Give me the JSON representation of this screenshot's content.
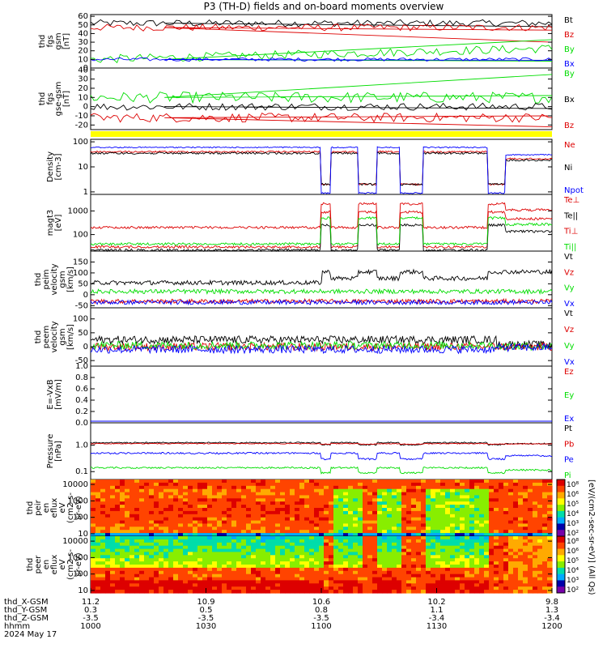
{
  "title": "P3 (TH-D) fields and on-board moments overview",
  "colors": {
    "black": "#000000",
    "red": "#dd0000",
    "green": "#00dd00",
    "blue": "#0000ff",
    "yellow": "#ffff00"
  },
  "chart_data": [
    {
      "type": "line",
      "id": "p1",
      "ylabel_lines": [
        "thd",
        "fgs",
        "gsm",
        "[nT]"
      ],
      "ticks": [
        "0",
        "10",
        "20",
        "30",
        "40",
        "50",
        "60"
      ],
      "ylim": [
        0,
        62
      ],
      "series": [
        {
          "name": "Bt",
          "color": "black",
          "seg": [
            [
              0,
              0.16,
              52,
              4
            ],
            [
              0.16,
              1,
              48,
              0
            ]
          ]
        },
        {
          "name": "Bz",
          "color": "red",
          "seg": [
            [
              0,
              0.16,
              47,
              4
            ],
            [
              0.16,
              1,
              30,
              0
            ],
            [
              0.16,
              1,
              44,
              0
            ]
          ]
        },
        {
          "name": "By",
          "color": "green",
          "seg": [
            [
              0,
              0.16,
              10,
              5
            ],
            [
              0.16,
              1,
              33,
              0
            ],
            [
              0.16,
              1,
              8,
              0
            ]
          ]
        },
        {
          "name": "Bx",
          "color": "blue",
          "seg": [
            [
              0,
              0.16,
              10,
              2
            ],
            [
              0.16,
              1,
              9,
              0
            ]
          ]
        }
      ]
    },
    {
      "type": "line",
      "id": "p2",
      "ylabel_lines": [
        "thd",
        "fgs",
        "gse-gsm",
        "[nT]"
      ],
      "ticks": [
        "-20",
        "-10",
        "0",
        "10",
        "20",
        "30",
        "40"
      ],
      "ylim": [
        -25,
        42
      ],
      "series": [
        {
          "name": "By",
          "color": "green",
          "seg": [
            [
              0,
              0.16,
              10,
              6
            ],
            [
              0.16,
              1,
              35,
              0
            ],
            [
              0.16,
              1,
              12,
              0
            ]
          ]
        },
        {
          "name": "Bx",
          "color": "black",
          "seg": [
            [
              0,
              0.16,
              0,
              4
            ],
            [
              0.16,
              1,
              -2,
              0
            ]
          ]
        },
        {
          "name": "Bz",
          "color": "red",
          "seg": [
            [
              0,
              0.16,
              -12,
              5
            ],
            [
              0.16,
              1,
              -22,
              0
            ],
            [
              0.16,
              1,
              -10,
              0
            ]
          ]
        }
      ]
    },
    {
      "type": "log-line",
      "id": "p3",
      "ylabel_lines": [
        "Density",
        "[cm-3]"
      ],
      "ticks": [
        "1",
        "10",
        "100"
      ],
      "ylim_log": [
        -0.1,
        2.1
      ],
      "series": [
        {
          "name": "Ne",
          "color": "red"
        },
        {
          "name": "Ni",
          "color": "black"
        },
        {
          "name": "Npot",
          "color": "blue"
        }
      ]
    },
    {
      "type": "log-line",
      "id": "p4",
      "ylabel_lines": [
        "magt3",
        "[eV]"
      ],
      "ticks": [
        "100",
        "1000"
      ],
      "ylim_log": [
        1.3,
        3.7
      ],
      "series": [
        {
          "name": "Te⊥",
          "color": "red"
        },
        {
          "name": "Te||",
          "color": "black"
        },
        {
          "name": "Ti⊥",
          "color": "red"
        },
        {
          "name": "Ti||",
          "color": "green"
        }
      ]
    },
    {
      "type": "line",
      "id": "p5",
      "ylabel_lines": [
        "thd",
        "peim",
        "velocity",
        "gsm",
        "[km/s]"
      ],
      "ticks": [
        "-50",
        "0",
        "50",
        "100",
        "150"
      ],
      "ylim": [
        -60,
        200
      ],
      "series": [
        {
          "name": "Vt",
          "color": "black"
        },
        {
          "name": "Vz",
          "color": "red"
        },
        {
          "name": "Vy",
          "color": "green"
        },
        {
          "name": "Vx",
          "color": "blue"
        }
      ]
    },
    {
      "type": "line",
      "id": "p6",
      "ylabel_lines": [
        "thd",
        "peem",
        "velocity",
        "gsm",
        "[km/s]"
      ],
      "ticks": [
        "-50",
        "0",
        "50",
        "100"
      ],
      "ylim": [
        -70,
        140
      ],
      "series": [
        {
          "name": "Vt",
          "color": "black"
        },
        {
          "name": "Vz",
          "color": "red"
        },
        {
          "name": "Vy",
          "color": "green"
        },
        {
          "name": "Vx",
          "color": "blue"
        }
      ]
    },
    {
      "type": "line",
      "id": "p7",
      "ylabel_lines": [
        "E=-VxB",
        "[mV/m]"
      ],
      "ticks": [
        "0.0",
        "0.2",
        "0.4",
        "0.6",
        "0.8",
        "1.0"
      ],
      "ylim": [
        0,
        1
      ],
      "series": [
        {
          "name": "Ez",
          "color": "red"
        },
        {
          "name": "Ey",
          "color": "green"
        },
        {
          "name": "Ex",
          "color": "blue"
        }
      ]
    },
    {
      "type": "log-line",
      "id": "p8",
      "ylabel_lines": [
        "Pressure",
        "[nPa]"
      ],
      "ticks": [
        "0.1",
        "1.0"
      ],
      "ylim_log": [
        -1.3,
        0.85
      ],
      "series": [
        {
          "name": "Pt",
          "color": "black"
        },
        {
          "name": "Pb",
          "color": "red"
        },
        {
          "name": "Pe",
          "color": "blue"
        },
        {
          "name": "Pi",
          "color": "green"
        }
      ]
    },
    {
      "type": "heatmap",
      "id": "p9",
      "ylabel_lines": [
        "thd",
        "peir",
        "en",
        "eflux",
        "eV",
        "(cm2-s-",
        "sr-eV)"
      ],
      "ticks": [
        "10",
        "100",
        "1000",
        "10000"
      ],
      "ylim_log": [
        0.85,
        4.3
      ],
      "colorbar_ticks": [
        "10²",
        "10³",
        "10⁴",
        "10⁵",
        "10⁶",
        "10⁸"
      ]
    },
    {
      "type": "heatmap",
      "id": "p10",
      "ylabel_lines": [
        "thd",
        "peer",
        "en",
        "eflux",
        "eV",
        "(cm2-s-",
        "sr-eV)"
      ],
      "ticks": [
        "10",
        "100",
        "1000",
        "10000"
      ],
      "ylim_log": [
        0.85,
        4.3
      ],
      "colorbar_ticks": [
        "10²",
        "10³",
        "10⁴",
        "10⁵",
        "10⁶",
        "10⁸"
      ]
    }
  ],
  "colorbar_label": "[eV/(cm2-sec-sr-eV)] (All Qs)",
  "axis_rows": [
    {
      "label": "thd_X-GSM",
      "values": [
        "11.2",
        "10.9",
        "10.6",
        "10.2",
        "9.8"
      ]
    },
    {
      "label": "thd_Y-GSM",
      "values": [
        "0.3",
        "0.5",
        "0.8",
        "1.1",
        "1.3"
      ]
    },
    {
      "label": "thd_Z-GSM",
      "values": [
        "-3.5",
        "-3.5",
        "-3.5",
        "-3.4",
        "-3.4"
      ]
    },
    {
      "label": "hhmm",
      "values": [
        "1000",
        "1030",
        "1100",
        "1130",
        "1200"
      ]
    }
  ],
  "date": "2024 May 17"
}
